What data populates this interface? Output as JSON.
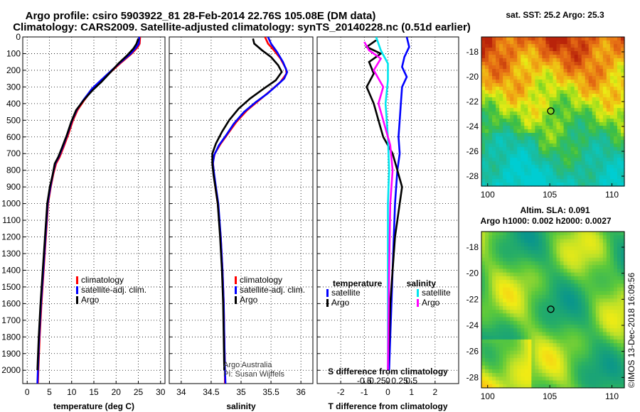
{
  "title_line1": "Argo profile: csiro 5903922_81 28-Feb-2014 22.76S 105.08E (DM data)",
  "title_line2": "Climatology: CARS2009. Satellite-adjusted climatology: synTS_20140228.nc (0.51d earlier)",
  "colors": {
    "climatology": "#ff0000",
    "satellite": "#0000ff",
    "argo": "#000000",
    "cyan": "#00e5ee",
    "magenta": "#ff00ff"
  },
  "chart_data": [
    {
      "id": "temperature",
      "type": "line",
      "xlabel": "temperature (deg C)",
      "ylabel": "",
      "xlim": [
        -1,
        31
      ],
      "ylim": [
        2080,
        0
      ],
      "xticks": [
        0,
        5,
        10,
        15,
        20,
        25,
        30
      ],
      "yticks": [
        0,
        100,
        200,
        300,
        400,
        500,
        600,
        700,
        800,
        900,
        1000,
        1100,
        1200,
        1300,
        1400,
        1500,
        1600,
        1700,
        1800,
        1900,
        2000
      ],
      "legend": [
        "climatology",
        "satellite-adj. clim.",
        "Argo"
      ],
      "series": [
        {
          "name": "climatology",
          "color": "#ff0000",
          "points": [
            [
              25.4,
              0
            ],
            [
              25.3,
              40
            ],
            [
              24.9,
              60
            ],
            [
              23.5,
              100
            ],
            [
              21.3,
              150
            ],
            [
              19.2,
              200
            ],
            [
              16.8,
              260
            ],
            [
              14.8,
              310
            ],
            [
              12.8,
              380
            ],
            [
              11.3,
              440
            ],
            [
              10.3,
              500
            ],
            [
              9.3,
              580
            ],
            [
              8.2,
              660
            ],
            [
              7.3,
              720
            ],
            [
              6.5,
              760
            ],
            [
              5.9,
              820
            ],
            [
              5.3,
              900
            ],
            [
              4.7,
              1000
            ],
            [
              4.2,
              1200
            ],
            [
              3.7,
              1400
            ],
            [
              3.2,
              1600
            ],
            [
              2.8,
              1800
            ],
            [
              2.5,
              2000
            ],
            [
              2.4,
              2080
            ]
          ]
        },
        {
          "name": "satellite-adj. clim.",
          "color": "#0000ff",
          "points": [
            [
              25.2,
              0
            ],
            [
              25.1,
              40
            ],
            [
              24.6,
              60
            ],
            [
              23.3,
              100
            ],
            [
              21.1,
              150
            ],
            [
              19.0,
              200
            ],
            [
              16.6,
              260
            ],
            [
              14.6,
              310
            ],
            [
              12.6,
              380
            ],
            [
              11.1,
              440
            ],
            [
              10.1,
              500
            ],
            [
              9.1,
              580
            ],
            [
              8.0,
              660
            ],
            [
              7.1,
              720
            ],
            [
              6.3,
              760
            ],
            [
              5.8,
              820
            ],
            [
              5.2,
              900
            ],
            [
              4.6,
              1000
            ],
            [
              4.1,
              1200
            ],
            [
              3.6,
              1400
            ],
            [
              3.1,
              1600
            ],
            [
              2.7,
              1800
            ],
            [
              2.4,
              2000
            ],
            [
              2.3,
              2080
            ]
          ]
        },
        {
          "name": "Argo",
          "color": "#000000",
          "points": [
            [
              25.0,
              10
            ],
            [
              24.6,
              40
            ],
            [
              23.9,
              70
            ],
            [
              22.5,
              110
            ],
            [
              20.5,
              160
            ],
            [
              18.8,
              210
            ],
            [
              16.7,
              270
            ],
            [
              14.7,
              320
            ],
            [
              12.7,
              380
            ],
            [
              11.0,
              440
            ],
            [
              9.9,
              510
            ],
            [
              8.9,
              590
            ],
            [
              7.9,
              660
            ],
            [
              7.0,
              720
            ],
            [
              6.2,
              760
            ],
            [
              5.7,
              830
            ],
            [
              5.1,
              900
            ],
            [
              4.5,
              1000
            ],
            [
              4.0,
              1200
            ],
            [
              3.5,
              1400
            ],
            [
              3.0,
              1600
            ],
            [
              2.6,
              1800
            ],
            [
              2.3,
              2000
            ]
          ]
        }
      ]
    },
    {
      "id": "salinity",
      "type": "line",
      "xlabel": "salinity",
      "ylabel": "",
      "xlim": [
        33.8,
        36.2
      ],
      "ylim": [
        2080,
        0
      ],
      "xticks": [
        34,
        34.5,
        35,
        35.5,
        36
      ],
      "legend": [
        "climatology",
        "satellite-adj. clim.",
        "Argo"
      ],
      "annotation": [
        "Argo Australia",
        "PI: Susan Wijffels"
      ],
      "series": [
        {
          "name": "climatology",
          "color": "#ff0000",
          "points": [
            [
              35.4,
              0
            ],
            [
              35.45,
              40
            ],
            [
              35.55,
              80
            ],
            [
              35.66,
              130
            ],
            [
              35.75,
              190
            ],
            [
              35.76,
              220
            ],
            [
              35.66,
              270
            ],
            [
              35.5,
              320
            ],
            [
              35.3,
              380
            ],
            [
              35.1,
              440
            ],
            [
              34.92,
              510
            ],
            [
              34.78,
              580
            ],
            [
              34.66,
              640
            ],
            [
              34.56,
              700
            ],
            [
              34.53,
              750
            ],
            [
              34.54,
              800
            ],
            [
              34.57,
              900
            ],
            [
              34.61,
              1000
            ],
            [
              34.66,
              1200
            ],
            [
              34.69,
              1400
            ],
            [
              34.71,
              1600
            ],
            [
              34.72,
              1800
            ],
            [
              34.73,
              2000
            ],
            [
              34.73,
              2080
            ]
          ]
        },
        {
          "name": "satellite-adj. clim.",
          "color": "#0000ff",
          "points": [
            [
              35.45,
              0
            ],
            [
              35.5,
              40
            ],
            [
              35.6,
              90
            ],
            [
              35.7,
              150
            ],
            [
              35.77,
              210
            ],
            [
              35.72,
              250
            ],
            [
              35.6,
              290
            ],
            [
              35.44,
              340
            ],
            [
              35.25,
              390
            ],
            [
              35.05,
              450
            ],
            [
              34.88,
              520
            ],
            [
              34.75,
              590
            ],
            [
              34.63,
              650
            ],
            [
              34.55,
              710
            ],
            [
              34.53,
              760
            ],
            [
              34.55,
              820
            ],
            [
              34.58,
              900
            ],
            [
              34.62,
              1000
            ],
            [
              34.66,
              1200
            ],
            [
              34.69,
              1400
            ],
            [
              34.71,
              1600
            ],
            [
              34.72,
              1800
            ],
            [
              34.73,
              2000
            ],
            [
              34.74,
              2080
            ]
          ]
        },
        {
          "name": "Argo",
          "color": "#000000",
          "points": [
            [
              35.2,
              10
            ],
            [
              35.22,
              40
            ],
            [
              35.35,
              80
            ],
            [
              35.5,
              120
            ],
            [
              35.62,
              170
            ],
            [
              35.68,
              210
            ],
            [
              35.58,
              260
            ],
            [
              35.38,
              310
            ],
            [
              35.15,
              370
            ],
            [
              34.96,
              430
            ],
            [
              34.8,
              500
            ],
            [
              34.68,
              570
            ],
            [
              34.58,
              640
            ],
            [
              34.52,
              700
            ],
            [
              34.52,
              760
            ],
            [
              34.54,
              830
            ],
            [
              34.57,
              900
            ],
            [
              34.61,
              1000
            ],
            [
              34.65,
              1200
            ],
            [
              34.68,
              1400
            ],
            [
              34.7,
              1600
            ],
            [
              34.71,
              1800
            ],
            [
              34.72,
              2000
            ]
          ]
        }
      ]
    },
    {
      "id": "difference",
      "type": "line",
      "xlabel": "T difference from climatology",
      "ylabel": "",
      "xlabel_top": "S difference from climatology",
      "xlim": [
        -3.0,
        3.0
      ],
      "ylim": [
        2080,
        0
      ],
      "xticks": [
        -2,
        -1,
        0,
        1,
        2
      ],
      "xticks_s": [
        "-0.5",
        "-0.25",
        "0",
        "0.25",
        "0.5"
      ],
      "legend_left_title": "temperature",
      "legend_right_title": "salinity",
      "legend_left": [
        "satellite",
        "Argo"
      ],
      "legend_right": [
        "satellite",
        "Argo"
      ],
      "series": [
        {
          "name": "T satellite",
          "color": "#0000ff",
          "points": [
            [
              0.8,
              0
            ],
            [
              0.9,
              60
            ],
            [
              0.7,
              120
            ],
            [
              0.6,
              180
            ],
            [
              0.8,
              240
            ],
            [
              0.6,
              300
            ],
            [
              0.55,
              400
            ],
            [
              0.5,
              500
            ],
            [
              0.45,
              600
            ],
            [
              0.5,
              700
            ],
            [
              0.4,
              800
            ],
            [
              0.35,
              900
            ],
            [
              0.3,
              1000
            ],
            [
              0.25,
              1200
            ],
            [
              0.2,
              1400
            ],
            [
              0.15,
              1600
            ],
            [
              0.1,
              1800
            ],
            [
              0.05,
              2000
            ]
          ]
        },
        {
          "name": "T Argo",
          "color": "#000000",
          "points": [
            [
              -0.5,
              20
            ],
            [
              -0.9,
              60
            ],
            [
              -0.3,
              100
            ],
            [
              -0.8,
              150
            ],
            [
              -0.6,
              220
            ],
            [
              -0.9,
              300
            ],
            [
              -0.6,
              400
            ],
            [
              -0.4,
              500
            ],
            [
              -0.2,
              600
            ],
            [
              0.2,
              700
            ],
            [
              0.4,
              800
            ],
            [
              0.6,
              900
            ],
            [
              0.5,
              1000
            ],
            [
              0.3,
              1200
            ],
            [
              0.2,
              1400
            ],
            [
              0.1,
              1600
            ],
            [
              0.05,
              1800
            ],
            [
              0.0,
              2000
            ]
          ]
        },
        {
          "name": "S satellite",
          "color": "#00e5ee",
          "points": [
            [
              -0.5,
              0
            ],
            [
              -0.3,
              80
            ],
            [
              0.0,
              160
            ],
            [
              0.0,
              260
            ],
            [
              -0.1,
              400
            ],
            [
              0.0,
              600
            ],
            [
              0.05,
              800
            ],
            [
              0.0,
              1000
            ],
            [
              0.0,
              1400
            ],
            [
              0.0,
              1800
            ],
            [
              0.0,
              2000
            ]
          ]
        },
        {
          "name": "S Argo",
          "color": "#ff00ff",
          "points": [
            [
              -1.0,
              30
            ],
            [
              -0.8,
              80
            ],
            [
              -0.3,
              130
            ],
            [
              -0.6,
              200
            ],
            [
              -0.2,
              300
            ],
            [
              -0.4,
              400
            ],
            [
              -0.2,
              500
            ],
            [
              0.1,
              650
            ],
            [
              0.2,
              800
            ],
            [
              0.1,
              1000
            ],
            [
              0.05,
              1400
            ],
            [
              0.0,
              2000
            ]
          ]
        }
      ]
    },
    {
      "id": "sst_map",
      "type": "heatmap",
      "title": "sat. SST: 25.2  Argo: 25.3",
      "xlim": [
        99.5,
        111
      ],
      "ylim": [
        -28.8,
        -16.8
      ],
      "xticks": [
        100,
        105,
        110
      ],
      "yticks": [
        -18,
        -20,
        -22,
        -24,
        -26,
        -28
      ],
      "marker": [
        105.08,
        -22.76
      ]
    },
    {
      "id": "sla_map",
      "type": "heatmap",
      "title": "Altim. SLA: 0.091",
      "subtitle": "Argo h1000: 0.002  h2000: 0.0027",
      "xlim": [
        99.5,
        111
      ],
      "ylim": [
        -28.8,
        -16.8
      ],
      "xticks": [
        100,
        105,
        110
      ],
      "yticks": [
        -18,
        -20,
        -22,
        -24,
        -26,
        -28
      ],
      "marker": [
        105.08,
        -22.76
      ]
    }
  ],
  "side_note": "©IMOS 13-Dec-2018 16:09:56"
}
